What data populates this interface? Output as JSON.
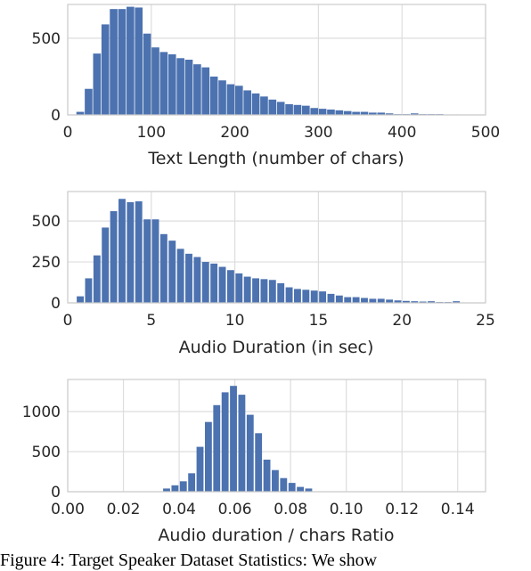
{
  "colors": {
    "bar": "#4c72b0",
    "grid": "#dddddd",
    "frame": "#cccccc",
    "text": "#262626"
  },
  "caption": "Figure 4: Target Speaker Dataset Statistics: We show",
  "chart_data": [
    {
      "type": "bar",
      "xlabel": "Text Length (number of chars)",
      "ylabel": "",
      "xlim": [
        0,
        500
      ],
      "ylim": [
        0,
        720
      ],
      "grid": true,
      "xticks": [
        0,
        100,
        200,
        300,
        400,
        500
      ],
      "xtick_labels": [
        "0",
        "100",
        "200",
        "300",
        "400",
        "500"
      ],
      "yticks": [
        0,
        500
      ],
      "ytick_labels": [
        "0",
        "500"
      ],
      "bin_width": 9.2,
      "x": [
        15,
        25,
        35,
        45,
        55,
        65,
        75,
        85,
        95,
        105,
        115,
        125,
        135,
        145,
        155,
        165,
        175,
        185,
        195,
        205,
        215,
        225,
        235,
        245,
        255,
        265,
        275,
        285,
        295,
        305,
        315,
        325,
        335,
        345,
        355,
        365,
        375,
        385,
        395,
        405,
        415,
        425,
        435,
        445,
        455,
        465,
        475
      ],
      "values": [
        20,
        170,
        400,
        590,
        690,
        690,
        705,
        700,
        530,
        440,
        410,
        395,
        370,
        360,
        330,
        310,
        250,
        225,
        200,
        190,
        160,
        140,
        120,
        100,
        85,
        70,
        65,
        60,
        45,
        40,
        35,
        30,
        25,
        20,
        20,
        15,
        15,
        10,
        5,
        5,
        10,
        5,
        5,
        5,
        3,
        3,
        2
      ]
    },
    {
      "type": "bar",
      "xlabel": "Audio Duration (in sec)",
      "ylabel": "",
      "xlim": [
        0,
        25
      ],
      "ylim": [
        0,
        680
      ],
      "grid": true,
      "xticks": [
        0,
        5,
        10,
        15,
        20,
        25
      ],
      "xtick_labels": [
        "0",
        "5",
        "10",
        "15",
        "20",
        "25"
      ],
      "yticks": [
        0,
        250,
        500
      ],
      "ytick_labels": [
        "0",
        "250",
        "500"
      ],
      "bin_width": 0.42,
      "x": [
        0.75,
        1.25,
        1.75,
        2.25,
        2.75,
        3.25,
        3.75,
        4.25,
        4.75,
        5.25,
        5.75,
        6.25,
        6.75,
        7.25,
        7.75,
        8.25,
        8.75,
        9.25,
        9.75,
        10.25,
        10.75,
        11.25,
        11.75,
        12.25,
        12.75,
        13.25,
        13.75,
        14.25,
        14.75,
        15.25,
        15.75,
        16.25,
        16.75,
        17.25,
        17.75,
        18.25,
        18.75,
        19.25,
        19.75,
        20.25,
        20.75,
        21.25,
        21.75,
        22.25,
        22.75,
        23.25
      ],
      "values": [
        40,
        150,
        290,
        460,
        560,
        635,
        615,
        620,
        510,
        510,
        420,
        380,
        330,
        300,
        280,
        250,
        240,
        220,
        200,
        180,
        160,
        150,
        145,
        140,
        120,
        95,
        85,
        80,
        75,
        70,
        55,
        45,
        35,
        35,
        30,
        25,
        25,
        20,
        15,
        12,
        10,
        8,
        10,
        5,
        5,
        10
      ]
    },
    {
      "type": "bar",
      "xlabel": "Audio duration / chars Ratio",
      "ylabel": "",
      "xlim": [
        0,
        0.15
      ],
      "ylim": [
        0,
        1400
      ],
      "grid": true,
      "xticks": [
        0.0,
        0.02,
        0.04,
        0.06,
        0.08,
        0.1,
        0.12,
        0.14
      ],
      "xtick_labels": [
        "0.00",
        "0.02",
        "0.04",
        "0.06",
        "0.08",
        "0.10",
        "0.12",
        "0.14"
      ],
      "yticks": [
        0,
        500,
        1000
      ],
      "ytick_labels": [
        "0",
        "500",
        "1000"
      ],
      "bin_width": 0.0025,
      "x": [
        0.0355,
        0.0385,
        0.0415,
        0.0445,
        0.0475,
        0.0505,
        0.0535,
        0.0565,
        0.0595,
        0.0625,
        0.0655,
        0.0685,
        0.0715,
        0.0745,
        0.0775,
        0.0805,
        0.0835,
        0.0865
      ],
      "values": [
        40,
        80,
        130,
        230,
        560,
        870,
        1080,
        1240,
        1320,
        1210,
        960,
        730,
        400,
        270,
        170,
        110,
        60,
        40
      ]
    }
  ]
}
